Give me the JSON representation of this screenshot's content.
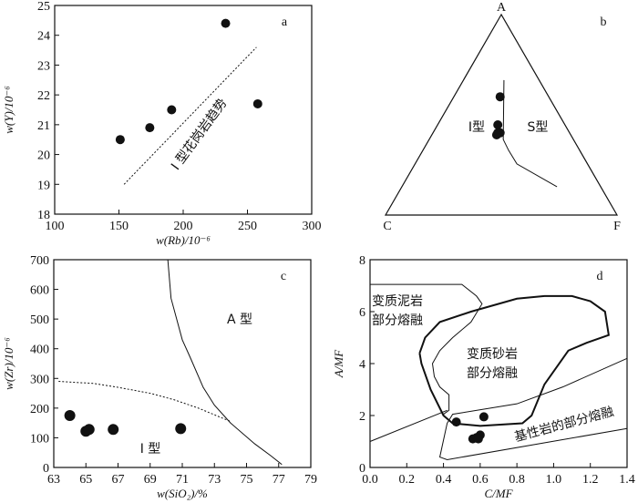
{
  "chart_data": [
    {
      "panel": "a",
      "type": "scatter",
      "panel_label": "a",
      "xlabel": "w(Rb)/10⁻⁶",
      "ylabel": "w(Y)/10⁻⁶",
      "xlim": [
        100,
        300
      ],
      "ylim": [
        18,
        25
      ],
      "xticks": [
        100,
        150,
        200,
        250,
        300
      ],
      "yticks": [
        18,
        19,
        20,
        21,
        22,
        23,
        24,
        25
      ],
      "points": [
        [
          151,
          20.5
        ],
        [
          174,
          20.9
        ],
        [
          191,
          21.5
        ],
        [
          233,
          24.4
        ],
        [
          258,
          21.7
        ]
      ],
      "trend_line": {
        "label": "I 型花岗岩趋势",
        "style": "dashed",
        "points": [
          [
            154,
            19.0
          ],
          [
            257,
            23.6
          ]
        ]
      }
    },
    {
      "panel": "b",
      "type": "ternary",
      "panel_label": "b",
      "vertices": {
        "top": "A",
        "left": "C",
        "right": "F"
      },
      "fields": [
        "I型",
        "S型"
      ],
      "points_ACF": [
        [
          0.59,
          0.21,
          0.2
        ],
        [
          0.45,
          0.29,
          0.26
        ],
        [
          0.41,
          0.31,
          0.28
        ],
        [
          0.41,
          0.3,
          0.29
        ],
        [
          0.4,
          0.32,
          0.28
        ]
      ],
      "boundary_AF": [
        [
          0.673,
          0.175
        ],
        [
          0.377,
          0.32
        ],
        [
          0.323,
          0.37
        ],
        [
          0.255,
          0.44
        ],
        [
          0.141,
          0.67
        ]
      ]
    },
    {
      "panel": "c",
      "type": "scatter",
      "panel_label": "c",
      "xlabel": "w(SiO₂)/%",
      "ylabel": "w(Zr)/10⁻⁶",
      "xlim": [
        63,
        79
      ],
      "ylim": [
        0,
        700
      ],
      "xticks": [
        63,
        65,
        67,
        69,
        71,
        73,
        75,
        77,
        79
      ],
      "yticks": [
        0,
        100,
        200,
        300,
        400,
        500,
        600,
        700
      ],
      "points": [
        [
          64.0,
          175
        ],
        [
          65.0,
          122
        ],
        [
          65.2,
          128
        ],
        [
          66.7,
          128
        ],
        [
          70.9,
          131
        ]
      ],
      "fields": [
        "A 型",
        "I 型"
      ],
      "solid_boundary": [
        [
          70.1,
          700
        ],
        [
          70.3,
          570
        ],
        [
          71.0,
          430
        ],
        [
          71.5,
          370
        ],
        [
          72.3,
          270
        ],
        [
          73.0,
          210
        ],
        [
          74.0,
          150
        ],
        [
          75.5,
          80
        ],
        [
          76.5,
          40
        ],
        [
          77.2,
          10
        ]
      ],
      "dashed_boundary": [
        [
          63.3,
          290
        ],
        [
          65.5,
          283
        ],
        [
          67.0,
          270
        ],
        [
          69.0,
          250
        ],
        [
          70.5,
          228
        ],
        [
          72.0,
          200
        ],
        [
          74.0,
          155
        ]
      ]
    },
    {
      "panel": "d",
      "type": "scatter",
      "panel_label": "d",
      "xlabel": "C/MF",
      "ylabel": "A/MF",
      "xlim": [
        0,
        1.4
      ],
      "ylim": [
        0,
        8
      ],
      "xticks": [
        "0.0",
        "0.2",
        "0.4",
        "0.6",
        "0.8",
        "1.0",
        "1.2",
        "1.4"
      ],
      "yticks": [
        "0",
        "2",
        "4",
        "6",
        "8"
      ],
      "points": [
        [
          0.47,
          1.75
        ],
        [
          0.62,
          1.95
        ],
        [
          0.56,
          1.1
        ],
        [
          0.58,
          1.15
        ],
        [
          0.6,
          1.25
        ],
        [
          0.59,
          1.1
        ]
      ],
      "regions": [
        {
          "name": "metapelite",
          "label": [
            "变质泥岩",
            "部分熔融"
          ],
          "points": [
            [
              0,
              7.05
            ],
            [
              0.5,
              7.05
            ],
            [
              0.58,
              6.6
            ],
            [
              0.61,
              6.3
            ],
            [
              0.55,
              5.6
            ],
            [
              0.45,
              5.0
            ],
            [
              0.38,
              4.5
            ],
            [
              0.34,
              4.0
            ],
            [
              0.35,
              3.5
            ],
            [
              0.38,
              3.1
            ],
            [
              0.43,
              2.8
            ],
            [
              0.43,
              2.2
            ],
            [
              0.4,
              2.05
            ]
          ]
        },
        {
          "name": "metagreywacke",
          "label": [
            "变质砂岩",
            "部分熔融"
          ],
          "points": [
            [
              0.27,
              4.4
            ],
            [
              0.3,
              5.0
            ],
            [
              0.38,
              5.6
            ],
            [
              0.55,
              6.0
            ],
            [
              0.8,
              6.5
            ],
            [
              0.95,
              6.6
            ],
            [
              1.1,
              6.6
            ],
            [
              1.2,
              6.4
            ],
            [
              1.28,
              6.0
            ],
            [
              1.3,
              5.1
            ],
            [
              1.18,
              4.8
            ],
            [
              1.08,
              4.5
            ],
            [
              0.95,
              3.2
            ],
            [
              0.88,
              2.0
            ],
            [
              0.83,
              1.7
            ],
            [
              0.6,
              1.6
            ],
            [
              0.45,
              1.7
            ],
            [
              0.4,
              2.0
            ],
            [
              0.33,
              3.0
            ],
            [
              0.28,
              4.0
            ],
            [
              0.27,
              4.4
            ]
          ]
        },
        {
          "name": "mafic",
          "label": [
            "基性岩的部分熔融"
          ],
          "points": [
            [
              1.4,
              4.2
            ],
            [
              1.05,
              3.1
            ],
            [
              0.8,
              2.45
            ],
            [
              0.45,
              2.05
            ],
            [
              0.42,
              1.7
            ],
            [
              0.38,
              0.4
            ],
            [
              0.42,
              0.3
            ],
            [
              1.4,
              1.5
            ]
          ]
        }
      ],
      "dividing_line": [
        [
          0,
          1.0
        ],
        [
          0.42,
          2.2
        ]
      ]
    }
  ]
}
